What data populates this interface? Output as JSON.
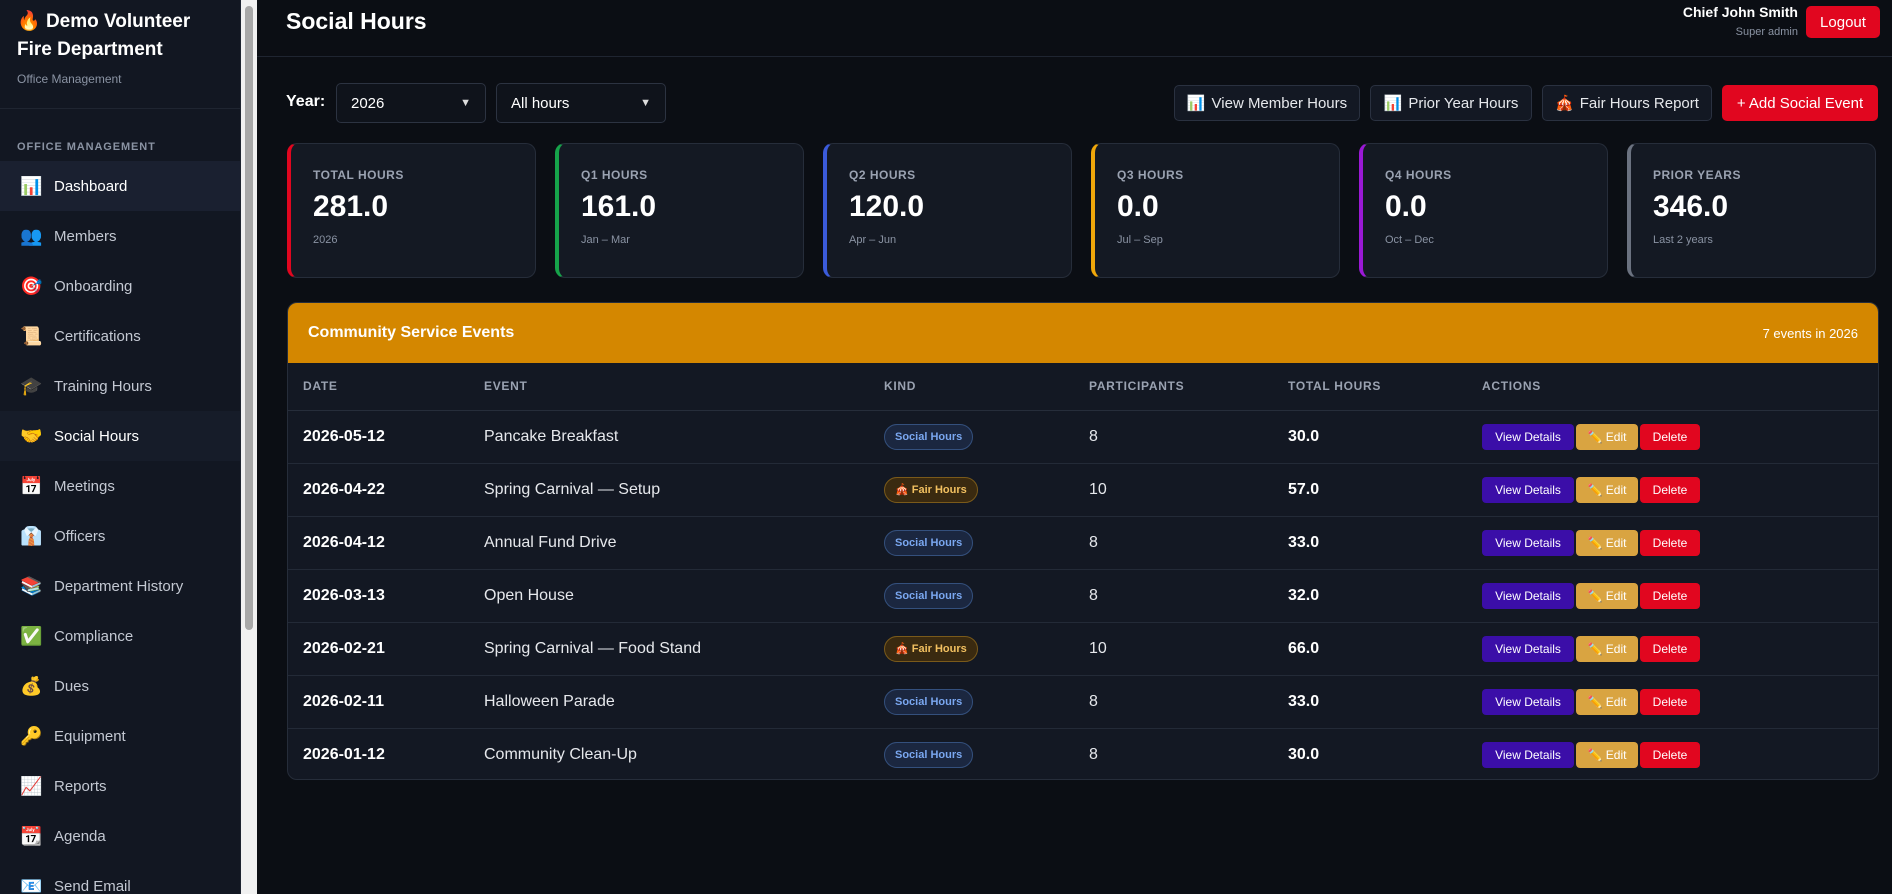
{
  "sidebar": {
    "brand_icon": "🔥",
    "brand_title": "Demo Volunteer Fire Department",
    "brand_sub": "Office Management",
    "section_label": "OFFICE MANAGEMENT",
    "items": [
      {
        "icon": "📊",
        "label": "Dashboard"
      },
      {
        "icon": "👥",
        "label": "Members"
      },
      {
        "icon": "🎯",
        "label": "Onboarding"
      },
      {
        "icon": "📜",
        "label": "Certifications"
      },
      {
        "icon": "🎓",
        "label": "Training Hours"
      },
      {
        "icon": "🤝",
        "label": "Social Hours"
      },
      {
        "icon": "📅",
        "label": "Meetings"
      },
      {
        "icon": "👔",
        "label": "Officers"
      },
      {
        "icon": "📚",
        "label": "Department History"
      },
      {
        "icon": "✅",
        "label": "Compliance"
      },
      {
        "icon": "💰",
        "label": "Dues"
      },
      {
        "icon": "🔑",
        "label": "Equipment"
      },
      {
        "icon": "📈",
        "label": "Reports"
      },
      {
        "icon": "📆",
        "label": "Agenda"
      },
      {
        "icon": "📧",
        "label": "Send Email"
      }
    ]
  },
  "header": {
    "title": "Social Hours",
    "user_name": "Chief John Smith",
    "user_role": "Super admin",
    "logout_label": "Logout"
  },
  "toolbar": {
    "year_label": "Year:",
    "year_value": "2026",
    "filter_value": "All hours",
    "view_member_icon": "📊",
    "view_member_label": "View Member Hours",
    "prior_year_icon": "📊",
    "prior_year_label": "Prior Year Hours",
    "fair_report_icon": "🎪",
    "fair_report_label": "Fair Hours Report",
    "add_label": "+ Add Social Event"
  },
  "stats": [
    {
      "label": "TOTAL HOURS",
      "value": "281.0",
      "sub": "2026",
      "color": "#e1061f"
    },
    {
      "label": "Q1 HOURS",
      "value": "161.0",
      "sub": "Jan – Mar",
      "color": "#16a34a"
    },
    {
      "label": "Q2 HOURS",
      "value": "120.0",
      "sub": "Apr – Jun",
      "color": "#3b5bdb"
    },
    {
      "label": "Q3 HOURS",
      "value": "0.0",
      "sub": "Jul – Sep",
      "color": "#f0a70a"
    },
    {
      "label": "Q4 HOURS",
      "value": "0.0",
      "sub": "Oct – Dec",
      "color": "#9b19d6"
    },
    {
      "label": "PRIOR YEARS",
      "value": "346.0",
      "sub": "Last 2 years",
      "color": "#6b7280"
    }
  ],
  "events": {
    "title": "Community Service Events",
    "count": "7 events in 2026",
    "columns": [
      "DATE",
      "EVENT",
      "KIND",
      "PARTICIPANTS",
      "TOTAL HOURS",
      "ACTIONS"
    ],
    "actions": {
      "view": "View Details",
      "edit_icon": "✏️",
      "edit": "Edit",
      "delete": "Delete"
    },
    "rows": [
      {
        "date": "2026-05-12",
        "event": "Pancake Breakfast",
        "kind": "Social Hours",
        "kind_type": "social",
        "participants": "8",
        "hours": "30.0"
      },
      {
        "date": "2026-04-22",
        "event": "Spring Carnival — Setup",
        "kind": "🎪 Fair Hours",
        "kind_type": "fair",
        "participants": "10",
        "hours": "57.0"
      },
      {
        "date": "2026-04-12",
        "event": "Annual Fund Drive",
        "kind": "Social Hours",
        "kind_type": "social",
        "participants": "8",
        "hours": "33.0"
      },
      {
        "date": "2026-03-13",
        "event": "Open House",
        "kind": "Social Hours",
        "kind_type": "social",
        "participants": "8",
        "hours": "32.0"
      },
      {
        "date": "2026-02-21",
        "event": "Spring Carnival — Food Stand",
        "kind": "🎪 Fair Hours",
        "kind_type": "fair",
        "participants": "10",
        "hours": "66.0"
      },
      {
        "date": "2026-02-11",
        "event": "Halloween Parade",
        "kind": "Social Hours",
        "kind_type": "social",
        "participants": "8",
        "hours": "33.0"
      },
      {
        "date": "2026-01-12",
        "event": "Community Clean-Up",
        "kind": "Social Hours",
        "kind_type": "social",
        "participants": "8",
        "hours": "30.0"
      }
    ]
  }
}
